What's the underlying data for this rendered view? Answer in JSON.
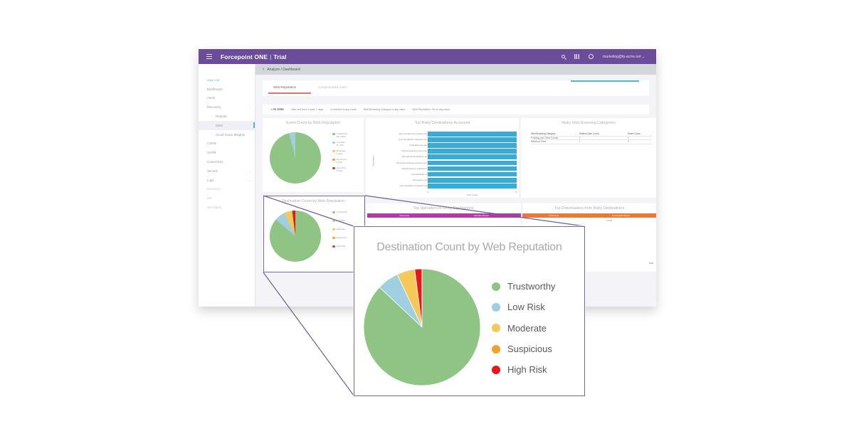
{
  "app": {
    "brand": "Forcepoint ONE",
    "edition": "Trial",
    "user_menu": "marketing@fp-acme.net",
    "topbar_icons": [
      "search-icon",
      "apps-grid-icon",
      "help-icon"
    ],
    "colors": {
      "header": "#6b4c9a",
      "accent": "#4fb6d8",
      "tab_underline": "#e57373"
    }
  },
  "breadcrumb": "Analyze / Dashboard",
  "sidebar": {
    "items": [
      {
        "label": "ANALYZE",
        "type": "section"
      },
      {
        "label": "Dashboard"
      },
      {
        "label": "Alerts"
      },
      {
        "label": "Discovery",
        "expandable": true
      },
      {
        "label": "Reports",
        "type": "sub"
      },
      {
        "label": "SWG",
        "type": "sub",
        "active": true
      },
      {
        "label": "Cloud Score Weights",
        "type": "sub"
      },
      {
        "label": "CSPM"
      },
      {
        "label": "SSPM"
      },
      {
        "label": "Connectors"
      },
      {
        "label": "Secrets",
        "expandable": true
      },
      {
        "label": "Logs",
        "expandable": true
      },
      {
        "label": "PROTECT",
        "type": "muted"
      },
      {
        "label": "API",
        "type": "muted"
      },
      {
        "label": "SETTINGS",
        "type": "muted"
      }
    ]
  },
  "tabs": [
    {
      "label": "Web Reputation",
      "active": true
    },
    {
      "label": "Compromised Users",
      "active": false
    }
  ],
  "filters": {
    "label": "FILTERS",
    "chips": [
      "Date and time is past 7 days",
      "Connector is any value",
      "Web Browsing Category is any value",
      "Web Reputation Tier is any value"
    ]
  },
  "widgets": {
    "event_count": {
      "title": "Event Count by Web Reputation",
      "legend": [
        {
          "label": "Trustworthy",
          "detail": "287 (96%)"
        },
        {
          "label": "Low Risk",
          "detail": "11 (4%)"
        },
        {
          "label": "Moderate",
          "detail": "0 (0%)"
        },
        {
          "label": "Suspicious",
          "detail": "0 (0%)"
        },
        {
          "label": "High Risk",
          "detail": "0 (0%)"
        }
      ]
    },
    "top_risky": {
      "title": "Top Risky Destinations Accessed",
      "ylabel": "Destination",
      "xlabel": "User Count",
      "x_ticks": [
        "0",
        "1"
      ],
      "rows": [
        "ads.example-cdn-tracking.net",
        "sync.ad-platform-network.com",
        "track.adserver.info",
        "metrics.analytics-pixel.com",
        "cdn.adnetwork-delivery.net",
        "track.ad-exchange-partners.com",
        "insights.beacon-collector.io",
        "ad.trackerlink.co",
        "adv.beacon.net",
        "sync.ad-platform-network.org"
      ]
    },
    "risky_categories": {
      "title": "Risky Web Browsing Categories",
      "columns": [
        "Web Browsing Category",
        "Distinct User Count",
        "Event Count"
      ],
      "rows": [
        [
          "Phishing and Other Frauds",
          "1",
          "1"
        ],
        [
          "Malicious Sites",
          "1",
          "3"
        ]
      ]
    },
    "destination_count": {
      "title": "Destination Count by Web Reputation"
    },
    "top_uploaders": {
      "title": "Top Uploaders to Risky Destinations",
      "columns": [
        "Username",
        "Uploaded Bytes"
      ],
      "header_color": "#b03aa8"
    },
    "top_downloaders": {
      "title": "Top Downloaders from Risky Destinations",
      "columns": [
        "Username",
        "Downloaded Bytes"
      ],
      "header_color": "#e8793a",
      "rows": [
        [
          "",
          "2.0KB"
        ]
      ],
      "footer": "Total"
    }
  },
  "callout": {
    "title": "Destination Count by Web Reputation",
    "border_color": "#7b67a6"
  },
  "chart_data": {
    "type": "pie",
    "title": "Destination Count by Web Reputation",
    "categories": [
      "Trustworthy",
      "Low Risk",
      "Moderate",
      "Suspicious",
      "High Risk"
    ],
    "values": [
      87,
      6,
      5,
      0,
      2
    ],
    "unit": "percent (estimated)",
    "colors": [
      "#8fc485",
      "#9fcfe0",
      "#f5c85a",
      "#f5a02a",
      "#e8161b"
    ],
    "legend_position": "right"
  }
}
